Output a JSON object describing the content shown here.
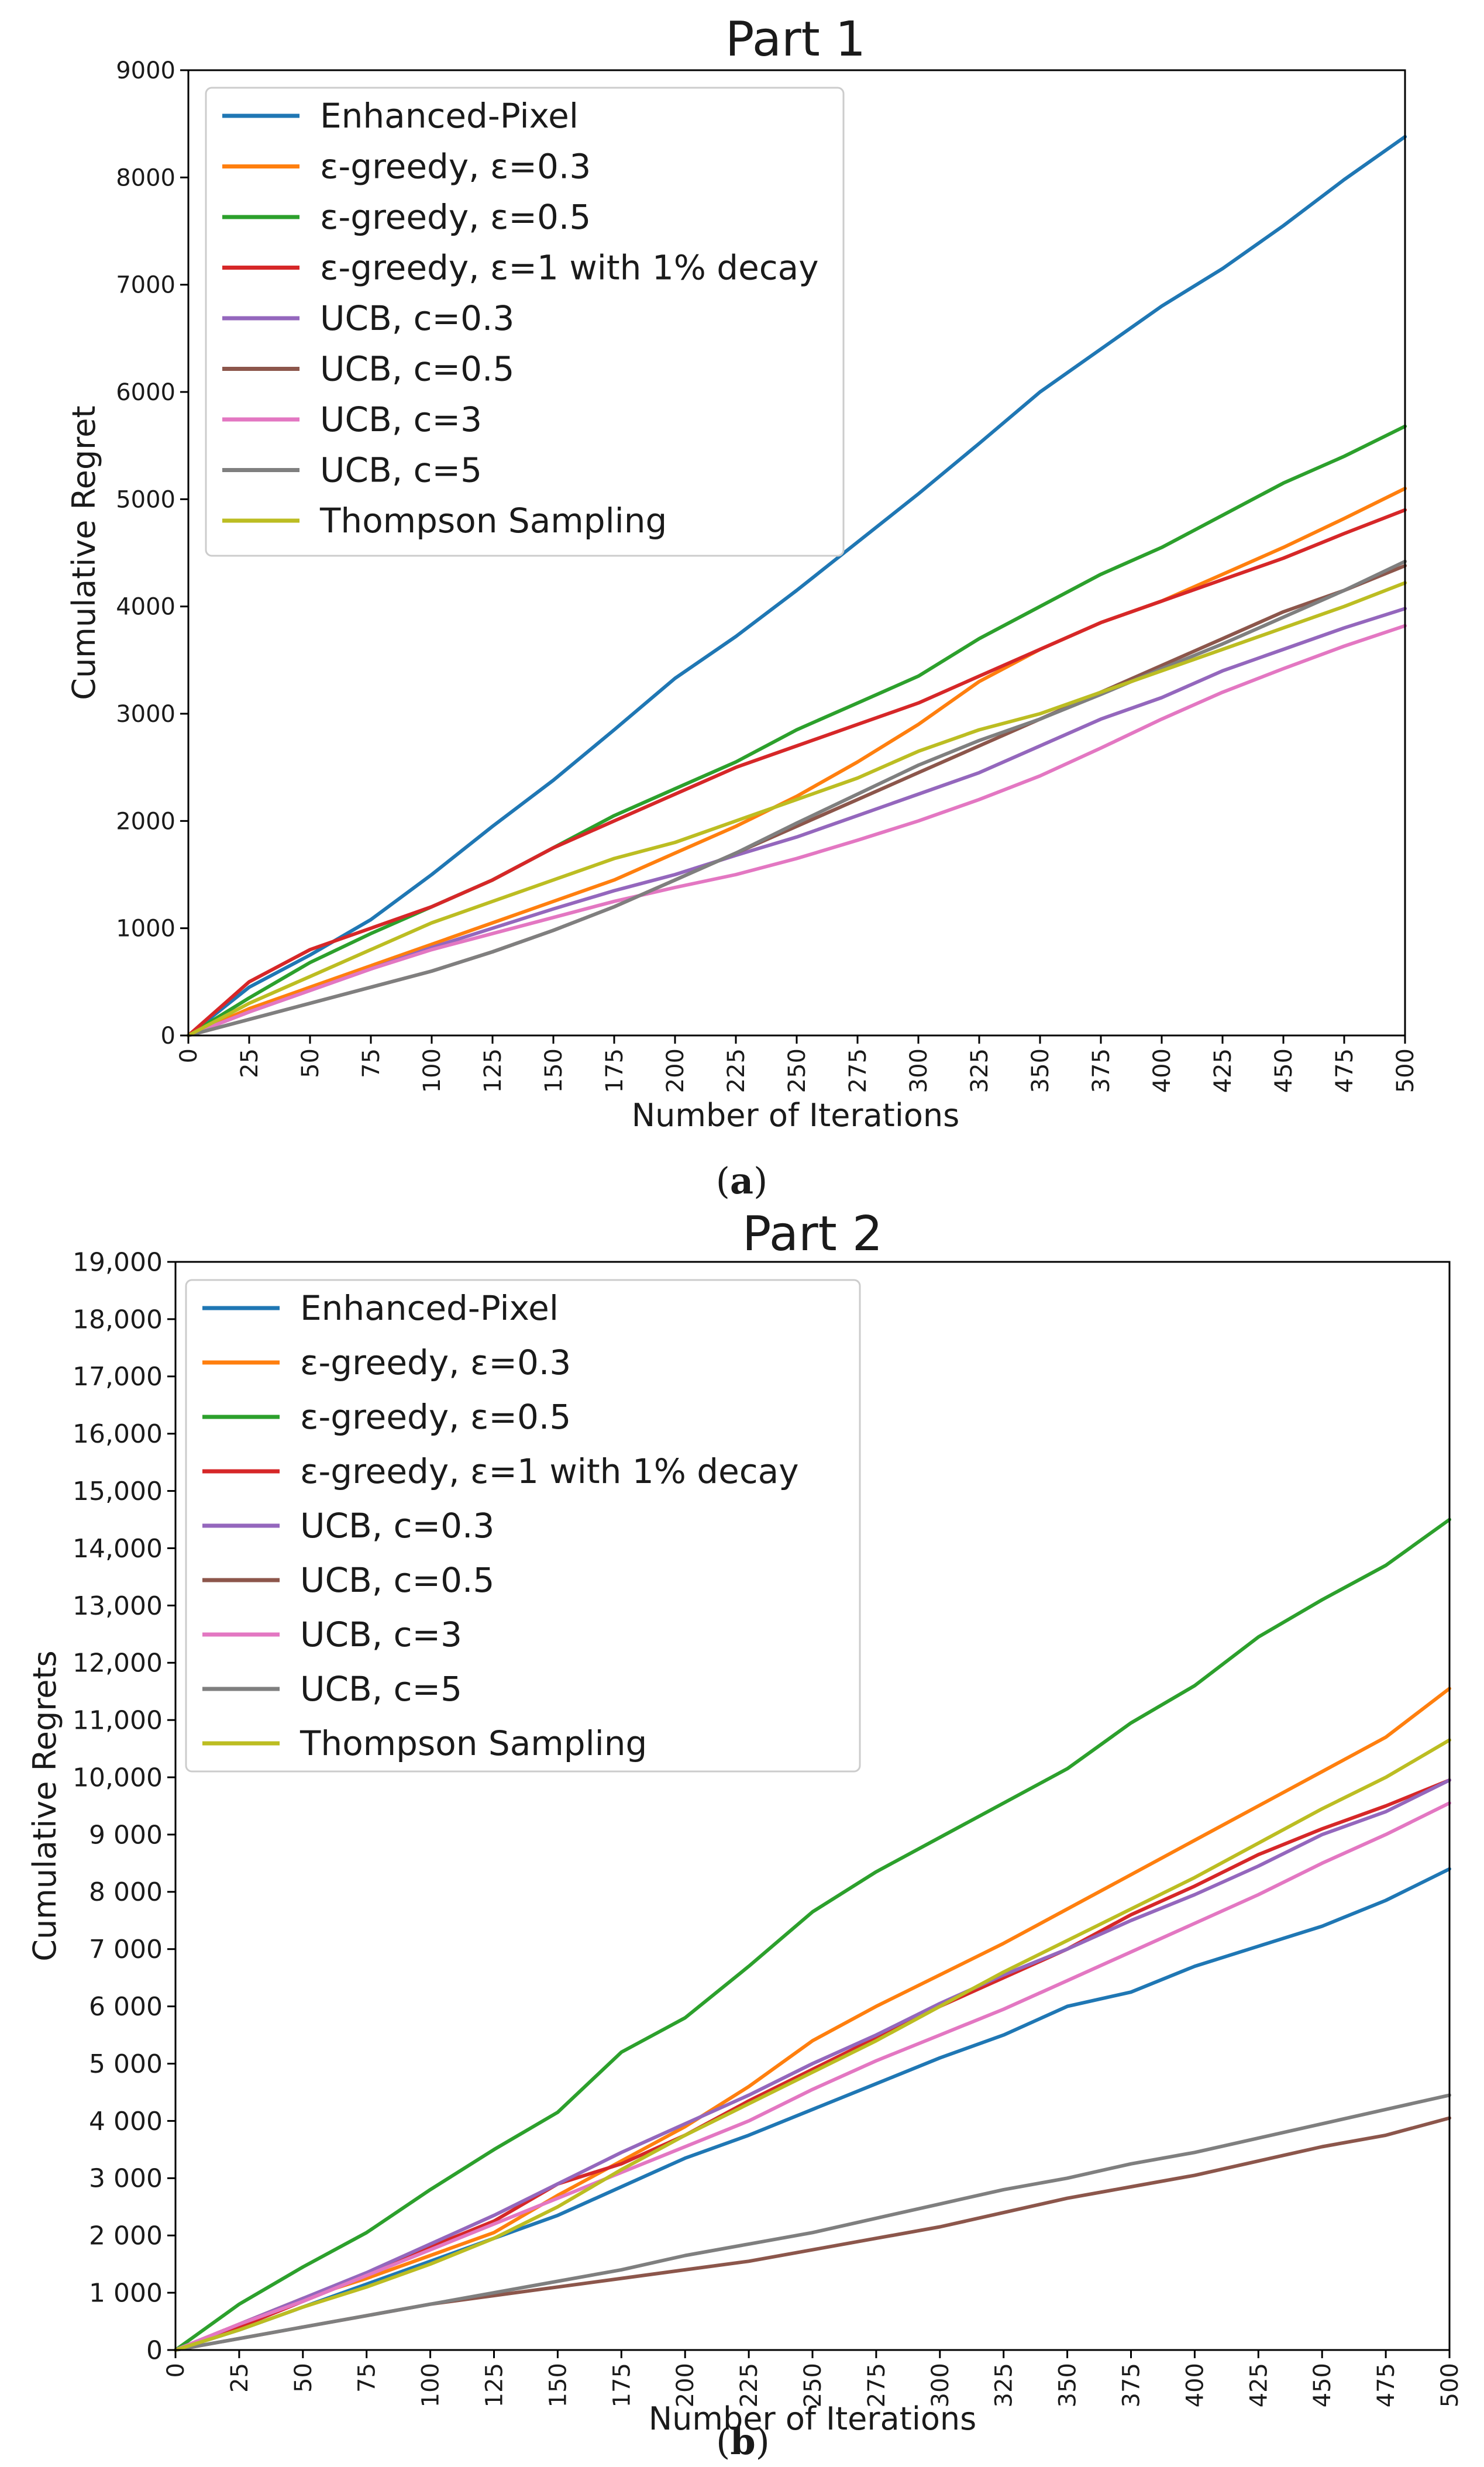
{
  "figure": {
    "panels": [
      {
        "caption": "(a)",
        "caption_letter": "a",
        "chart_data": {
          "type": "line",
          "title": "Part 1",
          "xlabel": "Number of Iterations",
          "ylabel": "Cumulative Regret",
          "xlim": [
            0,
            500
          ],
          "ylim": [
            0,
            9000
          ],
          "xticks": [
            0,
            25,
            50,
            75,
            100,
            125,
            150,
            175,
            200,
            225,
            250,
            275,
            300,
            325,
            350,
            375,
            400,
            425,
            450,
            475,
            500
          ],
          "xtick_labels": [
            "0",
            "25",
            "50",
            "75",
            "100",
            "125",
            "150",
            "175",
            "200",
            "225",
            "250",
            "275",
            "300",
            "325",
            "350",
            "375",
            "400",
            "425",
            "450",
            "475",
            "500"
          ],
          "yticks": [
            0,
            1000,
            2000,
            3000,
            4000,
            5000,
            6000,
            7000,
            8000,
            9000
          ],
          "ytick_labels": [
            "0",
            "1000",
            "2000",
            "3000",
            "4000",
            "5000",
            "6000",
            "7000",
            "8000",
            "9000"
          ],
          "legend_position": "upper-left",
          "x": [
            0,
            25,
            50,
            75,
            100,
            125,
            150,
            175,
            200,
            225,
            250,
            275,
            300,
            325,
            350,
            375,
            400,
            425,
            450,
            475,
            500
          ],
          "series": [
            {
              "name": "Enhanced-Pixel",
              "color": "#1f77b4",
              "values": [
                0,
                450,
                750,
                1080,
                1500,
                1950,
                2380,
                2850,
                3330,
                3720,
                4150,
                4600,
                5050,
                5520,
                6000,
                6400,
                6800,
                7150,
                7550,
                7980,
                8380
              ]
            },
            {
              "name": "ε-greedy, ε=0.3",
              "color": "#ff7f0e",
              "values": [
                0,
                250,
                450,
                650,
                850,
                1050,
                1250,
                1450,
                1700,
                1950,
                2230,
                2550,
                2900,
                3300,
                3600,
                3850,
                4050,
                4300,
                4550,
                4820,
                5100
              ]
            },
            {
              "name": "ε-greedy, ε=0.5",
              "color": "#2ca02c",
              "values": [
                0,
                350,
                680,
                950,
                1200,
                1450,
                1750,
                2050,
                2300,
                2550,
                2850,
                3100,
                3350,
                3700,
                4000,
                4300,
                4550,
                4850,
                5150,
                5400,
                5680
              ]
            },
            {
              "name": "ε-greedy, ε=1 with 1% decay",
              "color": "#d62728",
              "values": [
                0,
                500,
                800,
                1000,
                1200,
                1450,
                1750,
                2000,
                2250,
                2500,
                2700,
                2900,
                3100,
                3350,
                3600,
                3850,
                4050,
                4250,
                4450,
                4680,
                4900
              ]
            },
            {
              "name": "UCB, c=0.3",
              "color": "#9467bd",
              "values": [
                0,
                220,
                420,
                620,
                820,
                1000,
                1180,
                1350,
                1500,
                1680,
                1850,
                2050,
                2250,
                2450,
                2700,
                2950,
                3150,
                3400,
                3600,
                3800,
                3980
              ]
            },
            {
              "name": "UCB, c=0.5",
              "color": "#8c564b",
              "values": [
                0,
                150,
                300,
                450,
                600,
                780,
                980,
                1200,
                1450,
                1700,
                1950,
                2200,
                2450,
                2700,
                2950,
                3200,
                3450,
                3700,
                3950,
                4150,
                4380
              ]
            },
            {
              "name": "UCB, c=3",
              "color": "#e377c2",
              "values": [
                0,
                220,
                420,
                620,
                800,
                950,
                1100,
                1250,
                1380,
                1500,
                1650,
                1820,
                2000,
                2200,
                2420,
                2680,
                2950,
                3200,
                3420,
                3630,
                3820
              ]
            },
            {
              "name": "UCB, c=5",
              "color": "#7f7f7f",
              "values": [
                0,
                150,
                300,
                450,
                600,
                780,
                980,
                1200,
                1450,
                1700,
                1980,
                2250,
                2520,
                2750,
                2950,
                3180,
                3420,
                3650,
                3900,
                4150,
                4420
              ]
            },
            {
              "name": "Thompson Sampling",
              "color": "#bcbd22",
              "values": [
                0,
                300,
                550,
                800,
                1050,
                1250,
                1450,
                1650,
                1800,
                2000,
                2200,
                2400,
                2650,
                2850,
                3000,
                3200,
                3400,
                3600,
                3800,
                4000,
                4220
              ]
            }
          ]
        }
      },
      {
        "caption": "(b)",
        "caption_letter": "b",
        "chart_data": {
          "type": "line",
          "title": "Part 2",
          "xlabel": "Number of Iterations",
          "ylabel": "Cumulative Regrets",
          "xlim": [
            0,
            500
          ],
          "ylim": [
            0,
            19000
          ],
          "xticks": [
            0,
            25,
            50,
            75,
            100,
            125,
            150,
            175,
            200,
            225,
            250,
            275,
            300,
            325,
            350,
            375,
            400,
            425,
            450,
            475,
            500
          ],
          "xtick_labels": [
            "0",
            "25",
            "50",
            "75",
            "100",
            "125",
            "150",
            "175",
            "200",
            "225",
            "250",
            "275",
            "300",
            "325",
            "350",
            "375",
            "400",
            "425",
            "450",
            "475",
            "500"
          ],
          "yticks": [
            0,
            1000,
            2000,
            3000,
            4000,
            5000,
            6000,
            7000,
            8000,
            9000,
            10000,
            11000,
            12000,
            13000,
            14000,
            15000,
            16000,
            17000,
            18000,
            19000
          ],
          "ytick_labels": [
            "0",
            "1 000",
            "2 000",
            "3 000",
            "4 000",
            "5 000",
            "6 000",
            "7 000",
            "8 000",
            "9 000",
            "10,000",
            "11,000",
            "12,000",
            "13,000",
            "14,000",
            "15,000",
            "16,000",
            "17,000",
            "18,000",
            "19,000"
          ],
          "legend_position": "upper-left",
          "x": [
            0,
            25,
            50,
            75,
            100,
            125,
            150,
            175,
            200,
            225,
            250,
            275,
            300,
            325,
            350,
            375,
            400,
            425,
            450,
            475,
            500
          ],
          "series": [
            {
              "name": "Enhanced-Pixel",
              "color": "#1f77b4",
              "values": [
                0,
                350,
                750,
                1150,
                1550,
                1950,
                2350,
                2850,
                3350,
                3750,
                4200,
                4650,
                5100,
                5500,
                6000,
                6250,
                6700,
                7050,
                7400,
                7850,
                8400
              ]
            },
            {
              "name": "ε-greedy, ε=0.3",
              "color": "#ff7f0e",
              "values": [
                0,
                450,
                900,
                1250,
                1650,
                2050,
                2700,
                3300,
                3900,
                4600,
                5400,
                6000,
                6550,
                7100,
                7700,
                8300,
                8900,
                9500,
                10100,
                10700,
                11550
              ]
            },
            {
              "name": "ε-greedy, ε=0.5",
              "color": "#2ca02c",
              "values": [
                0,
                800,
                1450,
                2050,
                2800,
                3500,
                4150,
                5200,
                5800,
                6700,
                7650,
                8350,
                8950,
                9550,
                10150,
                10950,
                11600,
                12450,
                13100,
                13700,
                14500
              ]
            },
            {
              "name": "ε-greedy, ε=1 with 1% decay",
              "color": "#d62728",
              "values": [
                0,
                400,
                850,
                1300,
                1800,
                2250,
                2900,
                3250,
                3750,
                4350,
                4900,
                5450,
                6000,
                6500,
                7000,
                7600,
                8100,
                8650,
                9100,
                9500,
                9950
              ]
            },
            {
              "name": "UCB, c=0.3",
              "color": "#9467bd",
              "values": [
                0,
                450,
                900,
                1350,
                1850,
                2350,
                2900,
                3450,
                3950,
                4450,
                5000,
                5500,
                6050,
                6550,
                7000,
                7500,
                7950,
                8450,
                9000,
                9400,
                9950
              ]
            },
            {
              "name": "UCB, c=0.5",
              "color": "#8c564b",
              "values": [
                0,
                200,
                400,
                600,
                800,
                950,
                1100,
                1250,
                1400,
                1550,
                1750,
                1950,
                2150,
                2400,
                2650,
                2850,
                3050,
                3300,
                3550,
                3750,
                4050
              ]
            },
            {
              "name": "UCB, c=3",
              "color": "#e377c2",
              "values": [
                0,
                450,
                850,
                1300,
                1750,
                2200,
                2650,
                3100,
                3550,
                4000,
                4550,
                5050,
                5500,
                5950,
                6450,
                6950,
                7450,
                7950,
                8500,
                9000,
                9550
              ]
            },
            {
              "name": "UCB, c=5",
              "color": "#7f7f7f",
              "values": [
                0,
                200,
                400,
                600,
                800,
                1000,
                1200,
                1400,
                1650,
                1850,
                2050,
                2300,
                2550,
                2800,
                3000,
                3250,
                3450,
                3700,
                3950,
                4200,
                4450
              ]
            },
            {
              "name": "Thompson Sampling",
              "color": "#bcbd22",
              "values": [
                0,
                350,
                750,
                1100,
                1500,
                1950,
                2500,
                3150,
                3750,
                4300,
                4850,
                5400,
                6000,
                6600,
                7150,
                7700,
                8250,
                8850,
                9450,
                10000,
                10650
              ]
            }
          ]
        }
      }
    ]
  }
}
